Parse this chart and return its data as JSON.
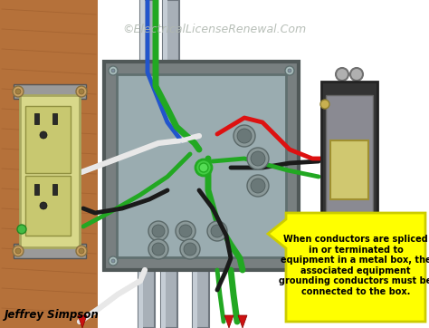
{
  "title": "©ElectricalLicenseRenewal.Com",
  "author": "Jeffrey Simpson",
  "annotation_text": "When conductors are spliced\nin or terminated to\nequipment in a metal box, the\nassociated equipment\ngrounding conductors must be\nconnected to the box.",
  "bg_color": "#ffffff",
  "annotation_bg": "#ffff00",
  "annotation_border": "#cccc00",
  "annotation_text_color": "#000000",
  "title_color": "#b0b8b0",
  "author_color": "#000000",
  "wood_color": "#b5713a",
  "wood_dark": "#8b4e22",
  "pipe_color": "#a8b0b8",
  "pipe_edge": "#707880",
  "box_outer": "#787f80",
  "box_inner": "#9aacb0",
  "outlet_color": "#d8d88a",
  "switch_dark": "#444444",
  "switch_plate": "#888890",
  "wire_white": "#e8e8e8",
  "wire_black": "#1a1a1a",
  "wire_green": "#22a822",
  "wire_blue": "#2255cc",
  "wire_red": "#dd1111",
  "arrow_red": "#cc1111"
}
